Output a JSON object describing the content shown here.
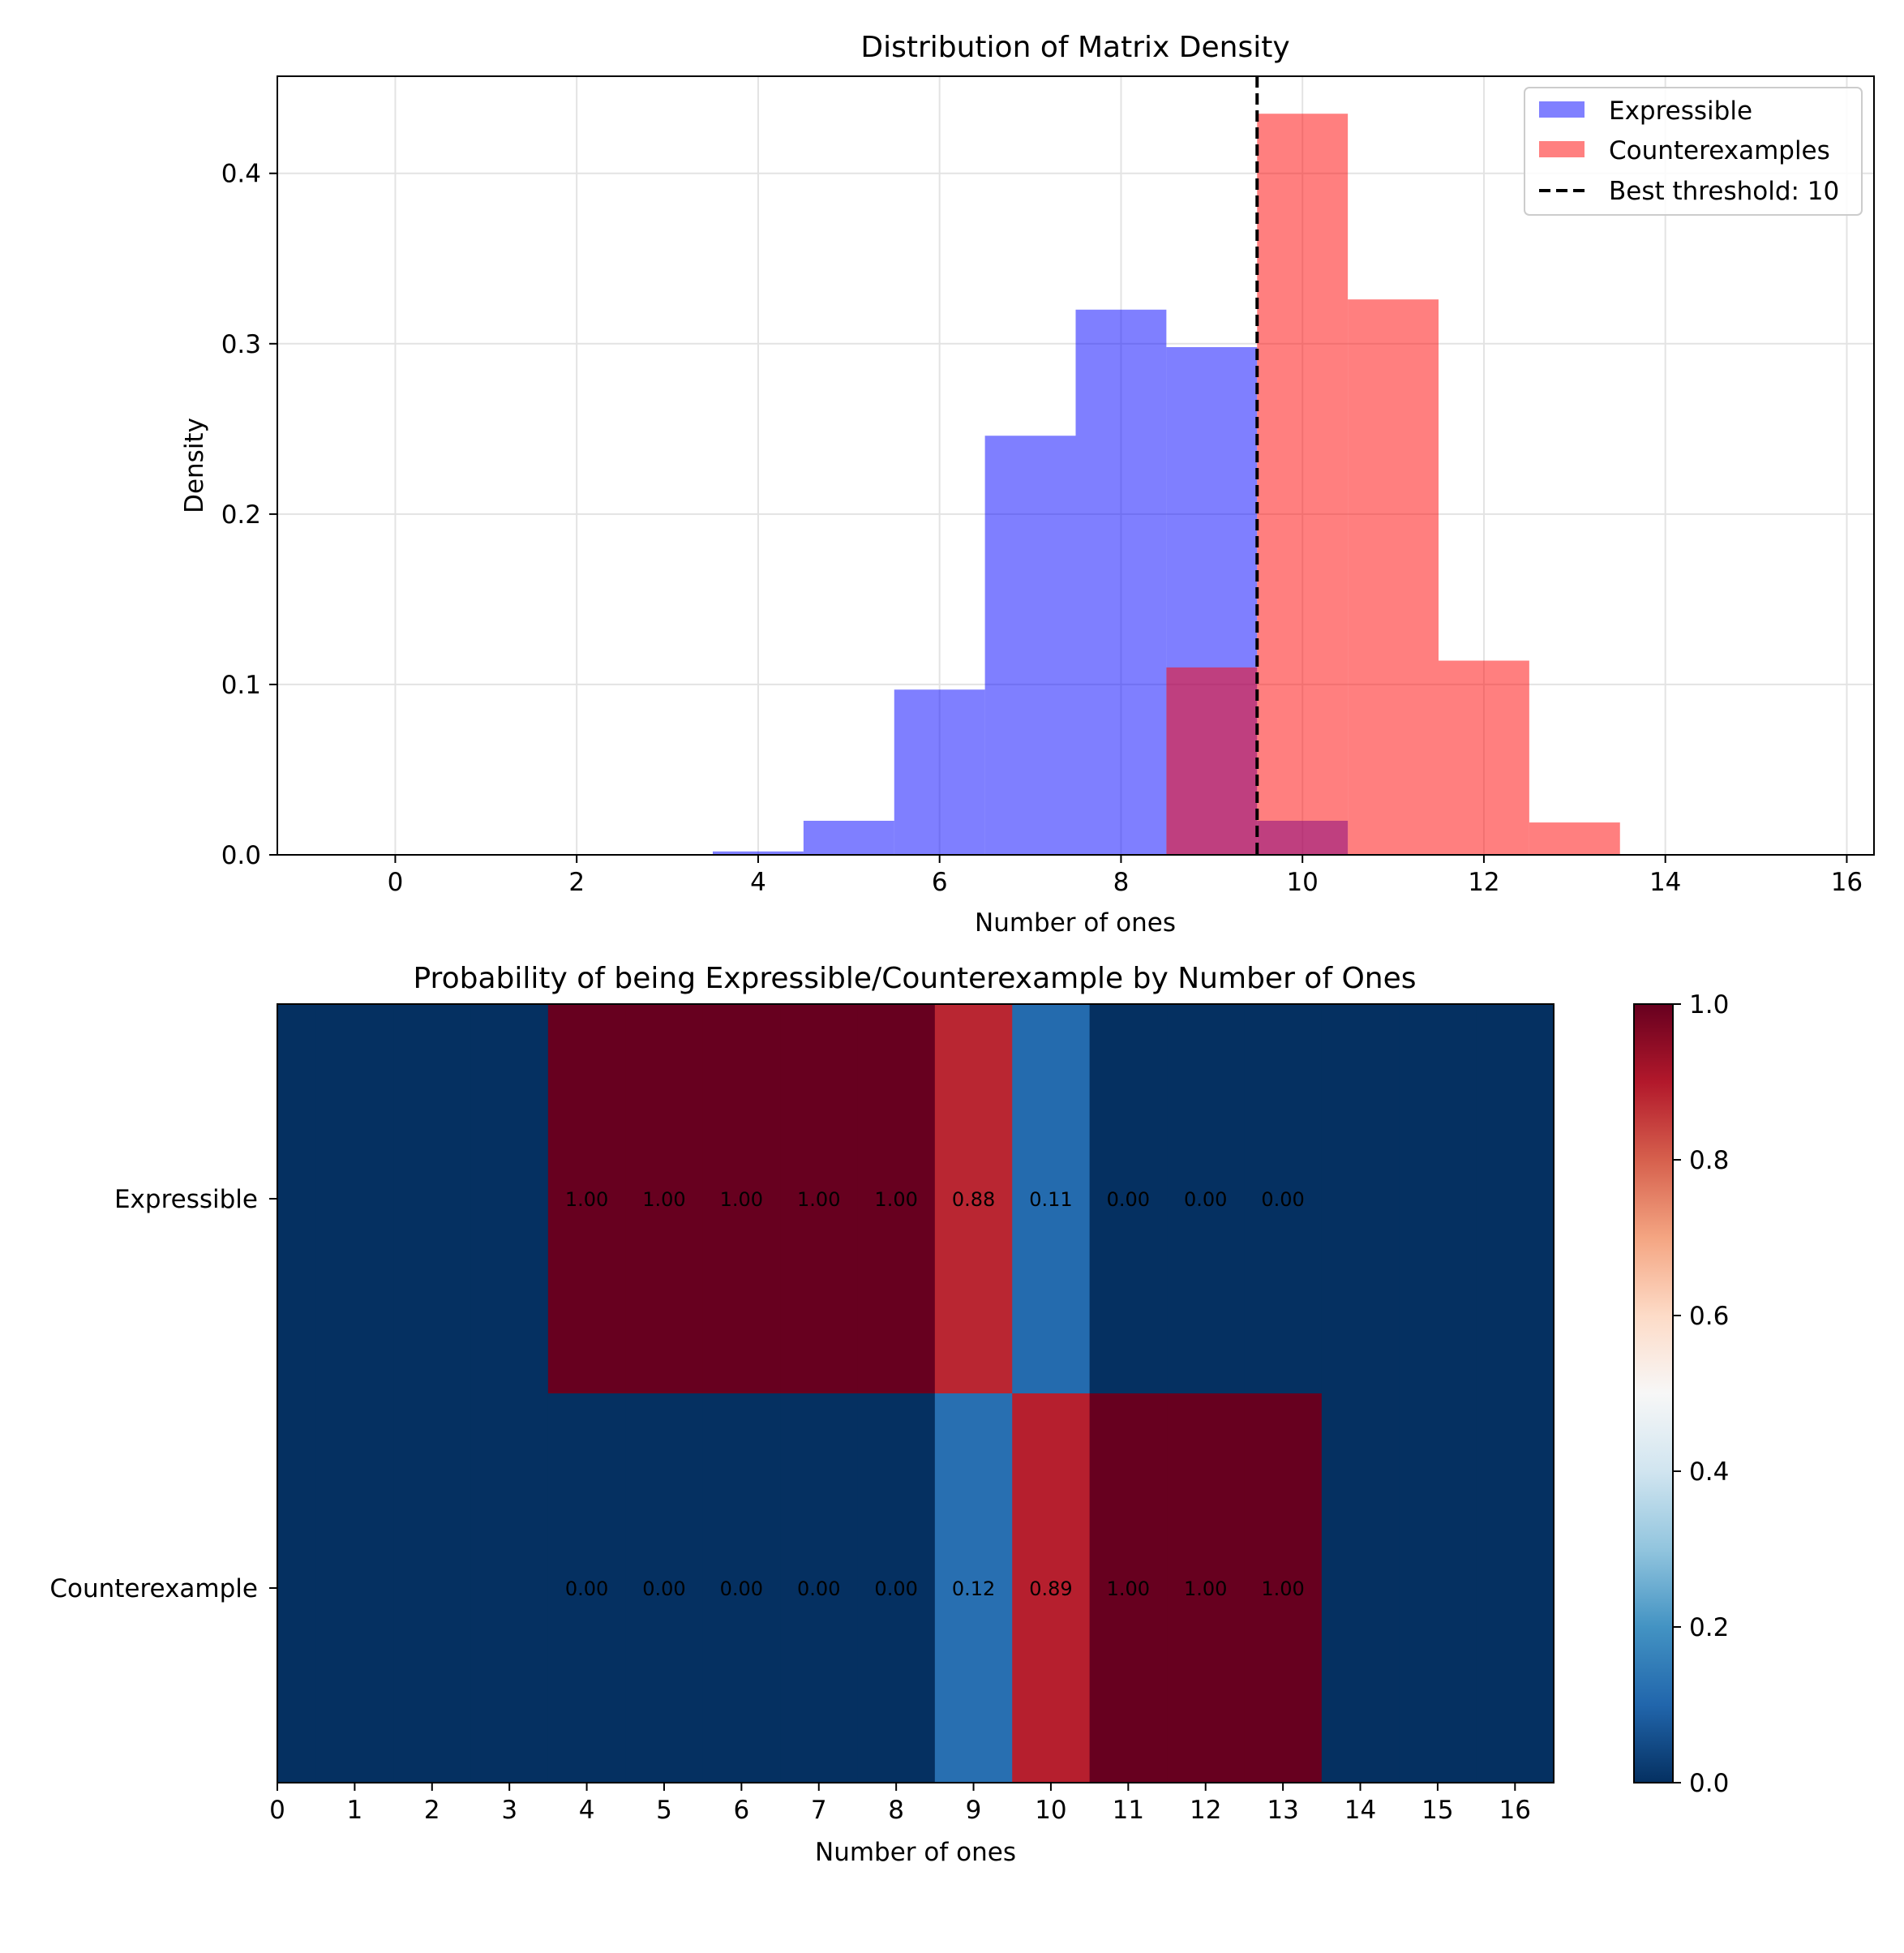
{
  "chart_data": [
    {
      "type": "bar",
      "title": "Distribution of Matrix Density",
      "xlabel": "Number of ones",
      "ylabel": "Density",
      "xlim": [
        -1.3,
        16.3
      ],
      "ylim": [
        0,
        0.457
      ],
      "x_ticks": [
        0,
        2,
        4,
        6,
        8,
        10,
        12,
        14,
        16
      ],
      "y_ticks": [
        0.0,
        0.1,
        0.2,
        0.3,
        0.4
      ],
      "y_tick_labels": [
        "0.0",
        "0.1",
        "0.2",
        "0.3",
        "0.4"
      ],
      "grid": true,
      "bin_width": 1,
      "series": [
        {
          "name": "Expressible",
          "color": "#0000ff",
          "opacity": 0.5,
          "bins": [
            {
              "x": 4,
              "value": 0.002
            },
            {
              "x": 5,
              "value": 0.02
            },
            {
              "x": 6,
              "value": 0.097
            },
            {
              "x": 7,
              "value": 0.246
            },
            {
              "x": 8,
              "value": 0.32
            },
            {
              "x": 9,
              "value": 0.298
            },
            {
              "x": 10,
              "value": 0.02
            }
          ]
        },
        {
          "name": "Counterexamples",
          "color": "#ff0000",
          "opacity": 0.5,
          "bins": [
            {
              "x": 9,
              "value": 0.11
            },
            {
              "x": 10,
              "value": 0.435
            },
            {
              "x": 11,
              "value": 0.326
            },
            {
              "x": 12,
              "value": 0.114
            },
            {
              "x": 13,
              "value": 0.019
            }
          ]
        }
      ],
      "threshold": {
        "x": 9.5,
        "label": "Best threshold: 10",
        "style": "dashed",
        "color": "#000000"
      },
      "legend": {
        "position": "top-right",
        "entries": [
          {
            "label": "Expressible",
            "kind": "patch",
            "color": "#8080ff"
          },
          {
            "label": "Counterexamples",
            "kind": "patch",
            "color": "#ff8080"
          },
          {
            "label": "Best threshold: 10",
            "kind": "dashed-line",
            "color": "#000000"
          }
        ]
      }
    },
    {
      "type": "heatmap",
      "title": "Probability of being Expressible/Counterexample by Number of Ones",
      "xlabel": "Number of ones",
      "ylabel": "",
      "x_categories": [
        "0",
        "1",
        "2",
        "3",
        "4",
        "5",
        "6",
        "7",
        "8",
        "9",
        "10",
        "11",
        "12",
        "13",
        "14",
        "15",
        "16"
      ],
      "y_categories": [
        "Expressible",
        "Counterexample"
      ],
      "colormap": "RdBu_r",
      "vmin": 0,
      "vmax": 1,
      "values": [
        [
          0,
          0,
          0,
          0,
          1.0,
          1.0,
          1.0,
          1.0,
          1.0,
          0.88,
          0.11,
          0.0,
          0.0,
          0.0,
          0,
          0,
          0
        ],
        [
          0,
          0,
          0,
          0,
          0.0,
          0.0,
          0.0,
          0.0,
          0.0,
          0.12,
          0.89,
          1.0,
          1.0,
          1.0,
          0,
          0,
          0
        ]
      ],
      "annotations": [
        [
          "",
          "",
          "",
          "",
          "1.00",
          "1.00",
          "1.00",
          "1.00",
          "1.00",
          "0.88",
          "0.11",
          "0.00",
          "0.00",
          "0.00",
          "",
          "",
          ""
        ],
        [
          "",
          "",
          "",
          "",
          "0.00",
          "0.00",
          "0.00",
          "0.00",
          "0.00",
          "0.12",
          "0.89",
          "1.00",
          "1.00",
          "1.00",
          "",
          "",
          ""
        ]
      ],
      "colorbar": {
        "ticks": [
          0.0,
          0.2,
          0.4,
          0.6,
          0.8,
          1.0
        ],
        "tick_labels": [
          "0.0",
          "0.2",
          "0.4",
          "0.6",
          "0.8",
          "1.0"
        ]
      }
    }
  ]
}
